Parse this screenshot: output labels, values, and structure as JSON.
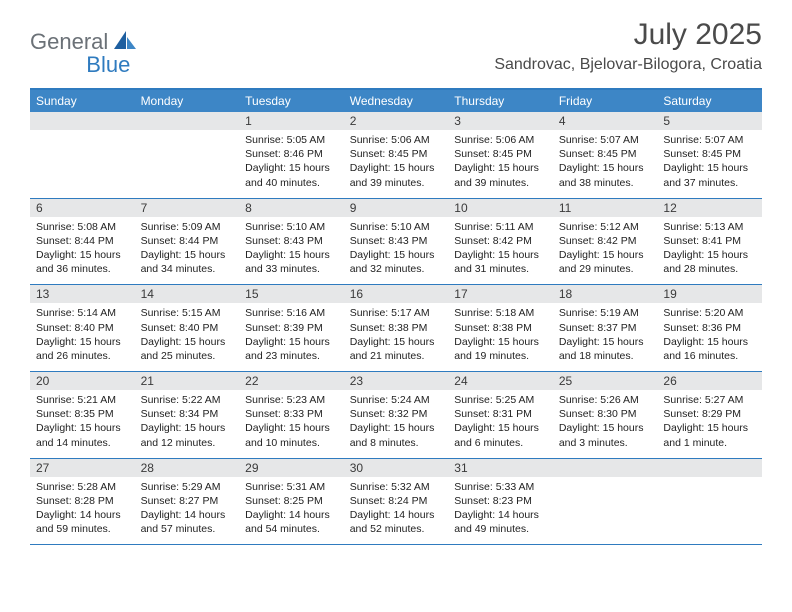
{
  "logo": {
    "text1": "General",
    "text2": "Blue"
  },
  "title": "July 2025",
  "location": "Sandrovac, Bjelovar-Bilogora, Croatia",
  "colors": {
    "header_bg": "#3d86c6",
    "border": "#2f7bbf",
    "daynum_bg": "#e6e7e8",
    "logo_gray": "#6b7177",
    "logo_blue": "#2f7bbf",
    "text": "#4a4a4a"
  },
  "day_headers": [
    "Sunday",
    "Monday",
    "Tuesday",
    "Wednesday",
    "Thursday",
    "Friday",
    "Saturday"
  ],
  "weeks": [
    [
      {
        "num": "",
        "sunrise": "",
        "sunset": "",
        "daylight": ""
      },
      {
        "num": "",
        "sunrise": "",
        "sunset": "",
        "daylight": ""
      },
      {
        "num": "1",
        "sunrise": "Sunrise: 5:05 AM",
        "sunset": "Sunset: 8:46 PM",
        "daylight": "Daylight: 15 hours and 40 minutes."
      },
      {
        "num": "2",
        "sunrise": "Sunrise: 5:06 AM",
        "sunset": "Sunset: 8:45 PM",
        "daylight": "Daylight: 15 hours and 39 minutes."
      },
      {
        "num": "3",
        "sunrise": "Sunrise: 5:06 AM",
        "sunset": "Sunset: 8:45 PM",
        "daylight": "Daylight: 15 hours and 39 minutes."
      },
      {
        "num": "4",
        "sunrise": "Sunrise: 5:07 AM",
        "sunset": "Sunset: 8:45 PM",
        "daylight": "Daylight: 15 hours and 38 minutes."
      },
      {
        "num": "5",
        "sunrise": "Sunrise: 5:07 AM",
        "sunset": "Sunset: 8:45 PM",
        "daylight": "Daylight: 15 hours and 37 minutes."
      }
    ],
    [
      {
        "num": "6",
        "sunrise": "Sunrise: 5:08 AM",
        "sunset": "Sunset: 8:44 PM",
        "daylight": "Daylight: 15 hours and 36 minutes."
      },
      {
        "num": "7",
        "sunrise": "Sunrise: 5:09 AM",
        "sunset": "Sunset: 8:44 PM",
        "daylight": "Daylight: 15 hours and 34 minutes."
      },
      {
        "num": "8",
        "sunrise": "Sunrise: 5:10 AM",
        "sunset": "Sunset: 8:43 PM",
        "daylight": "Daylight: 15 hours and 33 minutes."
      },
      {
        "num": "9",
        "sunrise": "Sunrise: 5:10 AM",
        "sunset": "Sunset: 8:43 PM",
        "daylight": "Daylight: 15 hours and 32 minutes."
      },
      {
        "num": "10",
        "sunrise": "Sunrise: 5:11 AM",
        "sunset": "Sunset: 8:42 PM",
        "daylight": "Daylight: 15 hours and 31 minutes."
      },
      {
        "num": "11",
        "sunrise": "Sunrise: 5:12 AM",
        "sunset": "Sunset: 8:42 PM",
        "daylight": "Daylight: 15 hours and 29 minutes."
      },
      {
        "num": "12",
        "sunrise": "Sunrise: 5:13 AM",
        "sunset": "Sunset: 8:41 PM",
        "daylight": "Daylight: 15 hours and 28 minutes."
      }
    ],
    [
      {
        "num": "13",
        "sunrise": "Sunrise: 5:14 AM",
        "sunset": "Sunset: 8:40 PM",
        "daylight": "Daylight: 15 hours and 26 minutes."
      },
      {
        "num": "14",
        "sunrise": "Sunrise: 5:15 AM",
        "sunset": "Sunset: 8:40 PM",
        "daylight": "Daylight: 15 hours and 25 minutes."
      },
      {
        "num": "15",
        "sunrise": "Sunrise: 5:16 AM",
        "sunset": "Sunset: 8:39 PM",
        "daylight": "Daylight: 15 hours and 23 minutes."
      },
      {
        "num": "16",
        "sunrise": "Sunrise: 5:17 AM",
        "sunset": "Sunset: 8:38 PM",
        "daylight": "Daylight: 15 hours and 21 minutes."
      },
      {
        "num": "17",
        "sunrise": "Sunrise: 5:18 AM",
        "sunset": "Sunset: 8:38 PM",
        "daylight": "Daylight: 15 hours and 19 minutes."
      },
      {
        "num": "18",
        "sunrise": "Sunrise: 5:19 AM",
        "sunset": "Sunset: 8:37 PM",
        "daylight": "Daylight: 15 hours and 18 minutes."
      },
      {
        "num": "19",
        "sunrise": "Sunrise: 5:20 AM",
        "sunset": "Sunset: 8:36 PM",
        "daylight": "Daylight: 15 hours and 16 minutes."
      }
    ],
    [
      {
        "num": "20",
        "sunrise": "Sunrise: 5:21 AM",
        "sunset": "Sunset: 8:35 PM",
        "daylight": "Daylight: 15 hours and 14 minutes."
      },
      {
        "num": "21",
        "sunrise": "Sunrise: 5:22 AM",
        "sunset": "Sunset: 8:34 PM",
        "daylight": "Daylight: 15 hours and 12 minutes."
      },
      {
        "num": "22",
        "sunrise": "Sunrise: 5:23 AM",
        "sunset": "Sunset: 8:33 PM",
        "daylight": "Daylight: 15 hours and 10 minutes."
      },
      {
        "num": "23",
        "sunrise": "Sunrise: 5:24 AM",
        "sunset": "Sunset: 8:32 PM",
        "daylight": "Daylight: 15 hours and 8 minutes."
      },
      {
        "num": "24",
        "sunrise": "Sunrise: 5:25 AM",
        "sunset": "Sunset: 8:31 PM",
        "daylight": "Daylight: 15 hours and 6 minutes."
      },
      {
        "num": "25",
        "sunrise": "Sunrise: 5:26 AM",
        "sunset": "Sunset: 8:30 PM",
        "daylight": "Daylight: 15 hours and 3 minutes."
      },
      {
        "num": "26",
        "sunrise": "Sunrise: 5:27 AM",
        "sunset": "Sunset: 8:29 PM",
        "daylight": "Daylight: 15 hours and 1 minute."
      }
    ],
    [
      {
        "num": "27",
        "sunrise": "Sunrise: 5:28 AM",
        "sunset": "Sunset: 8:28 PM",
        "daylight": "Daylight: 14 hours and 59 minutes."
      },
      {
        "num": "28",
        "sunrise": "Sunrise: 5:29 AM",
        "sunset": "Sunset: 8:27 PM",
        "daylight": "Daylight: 14 hours and 57 minutes."
      },
      {
        "num": "29",
        "sunrise": "Sunrise: 5:31 AM",
        "sunset": "Sunset: 8:25 PM",
        "daylight": "Daylight: 14 hours and 54 minutes."
      },
      {
        "num": "30",
        "sunrise": "Sunrise: 5:32 AM",
        "sunset": "Sunset: 8:24 PM",
        "daylight": "Daylight: 14 hours and 52 minutes."
      },
      {
        "num": "31",
        "sunrise": "Sunrise: 5:33 AM",
        "sunset": "Sunset: 8:23 PM",
        "daylight": "Daylight: 14 hours and 49 minutes."
      },
      {
        "num": "",
        "sunrise": "",
        "sunset": "",
        "daylight": ""
      },
      {
        "num": "",
        "sunrise": "",
        "sunset": "",
        "daylight": ""
      }
    ]
  ]
}
